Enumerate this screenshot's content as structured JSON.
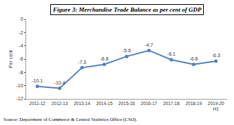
{
  "chart_data": {
    "type": "line",
    "title": "Figure 3: Merchandise Trade Balance as per cent of GDP",
    "y_label": "Per cent",
    "categories": [
      "2011-12",
      "2012-13",
      "2013-14",
      "2014-15",
      "2015-16",
      "2016-17",
      "2017-18",
      "2018-19",
      "2019-20 H1"
    ],
    "values": [
      -10.1,
      -10.4,
      -7.3,
      -6.8,
      -5.6,
      -4.7,
      -6.1,
      -6.8,
      -6.3
    ],
    "color": "#4f81bd",
    "marker": "circle",
    "ylim": [
      -12,
      0
    ],
    "yticks": [
      -12,
      -10,
      -8,
      -6,
      -4,
      -2,
      0
    ],
    "grid": false,
    "data_labels": true,
    "annotations": [
      "Source: Department of Commerce & Central Statistics Office (CSO)."
    ]
  }
}
